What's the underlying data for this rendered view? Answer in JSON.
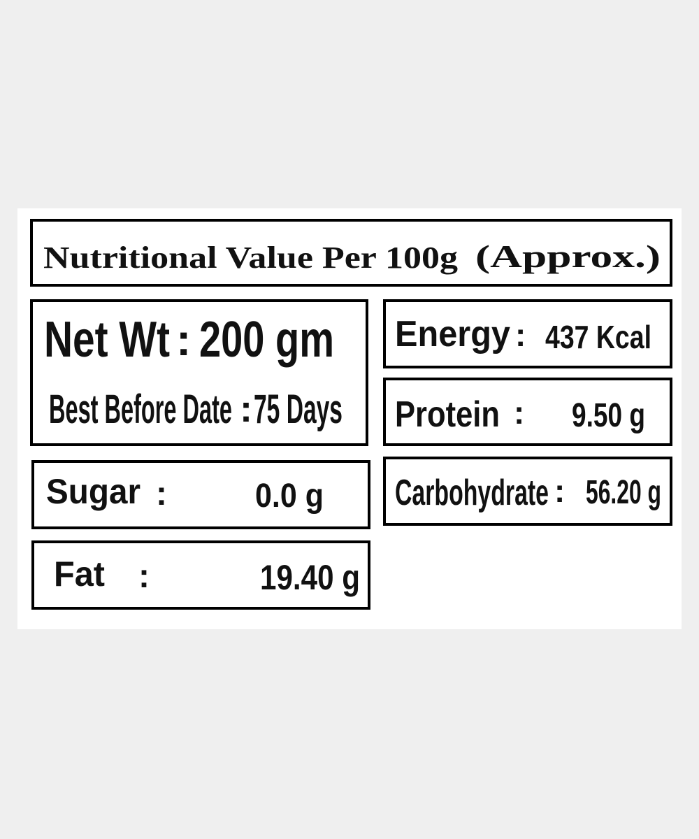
{
  "header": {
    "title": "Nutritional Value Per 100g",
    "note": "(Approx.)"
  },
  "net_weight": {
    "label": "Net Wt",
    "separator": ":",
    "value": "200 gm"
  },
  "best_before": {
    "label": "Best Before Date",
    "separator": ":",
    "value": "75 Days"
  },
  "nutrients": [
    {
      "label": "Energy",
      "separator": ":",
      "value": "437 Kcal"
    },
    {
      "label": "Protein",
      "separator": ":",
      "value": "9.50 g"
    },
    {
      "label": "Carbohydrate",
      "separator": ":",
      "value": "56.20 g"
    },
    {
      "label": "Sugar",
      "separator": ":",
      "value": "0.0 g"
    },
    {
      "label": "Fat",
      "separator": ":",
      "value": "19.40 g"
    }
  ]
}
